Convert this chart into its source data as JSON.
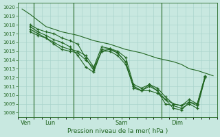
{
  "bg_color": "#c8e8e0",
  "grid_color": "#aad4cc",
  "line_color": "#226622",
  "marker_color": "#226622",
  "text_color": "#226622",
  "xlabel_text": "Pression niveau de la mer( hPa )",
  "xtick_labels": [
    "Ven",
    "Lun",
    "Sam",
    "Dim"
  ],
  "xtick_positions": [
    0.5,
    3.5,
    12.5,
    19.5
  ],
  "vline_positions": [
    1.5,
    6.5,
    17.5
  ],
  "ytick_min": 1008,
  "ytick_max": 1020,
  "ytick_step": 1,
  "series": [
    {
      "x": [
        0,
        1,
        2,
        3,
        4,
        5,
        6,
        7,
        8,
        9,
        10,
        11,
        12,
        13,
        14,
        15,
        16,
        17,
        18,
        19,
        20,
        21,
        22,
        23,
        24
      ],
      "y": [
        1019.8,
        1019.2,
        1018.5,
        1017.8,
        1017.5,
        1017.2,
        1017.0,
        1016.8,
        1016.5,
        1016.2,
        1016.0,
        1015.8,
        1015.5,
        1015.2,
        1015.0,
        1014.8,
        1014.5,
        1014.2,
        1014.0,
        1013.8,
        1013.5,
        1013.0,
        1012.8,
        1012.5,
        1012.2
      ],
      "has_markers": false
    },
    {
      "x": [
        1,
        2,
        3,
        4,
        5,
        6,
        7,
        8,
        9,
        10,
        11,
        12,
        13,
        14,
        15,
        16,
        17,
        18,
        19,
        20,
        21,
        22,
        23
      ],
      "y": [
        1018.0,
        1017.5,
        1017.2,
        1017.0,
        1016.5,
        1016.2,
        1015.8,
        1014.2,
        1012.8,
        1015.0,
        1015.0,
        1014.5,
        1013.5,
        1011.0,
        1010.5,
        1011.2,
        1010.5,
        1009.0,
        1008.8,
        1008.5,
        1009.0,
        1008.5,
        1012.0
      ],
      "has_markers": true
    },
    {
      "x": [
        1,
        2,
        3,
        4,
        5,
        6,
        7,
        8,
        9,
        10,
        11,
        12,
        13,
        14,
        15,
        16,
        17,
        18,
        19,
        20,
        21,
        22,
        23
      ],
      "y": [
        1017.8,
        1017.2,
        1016.8,
        1016.3,
        1016.0,
        1015.5,
        1014.5,
        1013.2,
        1012.6,
        1015.2,
        1015.3,
        1014.8,
        1013.8,
        1010.8,
        1010.5,
        1010.5,
        1010.2,
        1009.5,
        1008.5,
        1008.3,
        1009.2,
        1009.0,
        1012.2
      ],
      "has_markers": true
    },
    {
      "x": [
        1,
        2,
        3,
        4,
        5,
        6,
        7,
        8,
        9,
        10,
        11,
        12,
        13,
        14,
        15,
        16,
        17,
        18,
        19,
        20,
        21,
        22,
        23
      ],
      "y": [
        1017.5,
        1017.0,
        1016.5,
        1016.0,
        1015.5,
        1015.2,
        1015.0,
        1014.5,
        1013.2,
        1015.5,
        1015.3,
        1015.0,
        1014.3,
        1011.2,
        1010.8,
        1011.2,
        1010.8,
        1009.8,
        1009.0,
        1008.8,
        1009.5,
        1009.0,
        1012.2
      ],
      "has_markers": true
    },
    {
      "x": [
        1,
        2,
        3,
        4,
        5,
        6,
        7,
        8,
        9,
        10,
        11,
        12,
        13,
        14,
        15,
        16,
        17,
        18,
        19,
        20,
        21,
        22,
        23
      ],
      "y": [
        1017.2,
        1016.8,
        1016.5,
        1015.8,
        1015.2,
        1015.0,
        1014.8,
        1014.0,
        1013.1,
        1015.0,
        1015.2,
        1014.8,
        1013.8,
        1011.0,
        1010.5,
        1011.0,
        1010.5,
        1009.5,
        1009.0,
        1008.8,
        1009.2,
        1008.8,
        1012.0
      ],
      "has_markers": true
    }
  ],
  "xlim": [
    -0.5,
    24.5
  ],
  "ylim": [
    1007.5,
    1020.5
  ],
  "figsize": [
    3.2,
    2.0
  ],
  "dpi": 100
}
